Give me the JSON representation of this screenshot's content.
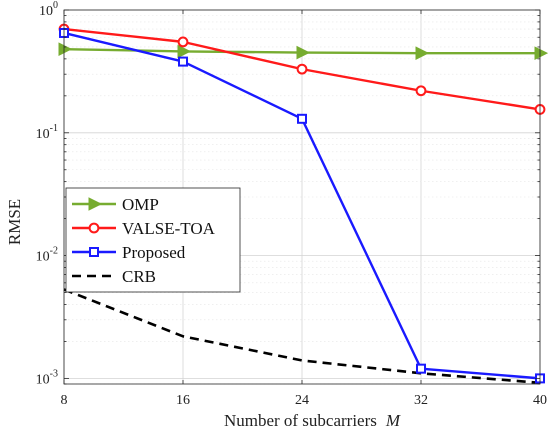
{
  "chart_data": {
    "type": "line",
    "xlabel": "Number of subcarriers",
    "xlabel_var": "M",
    "ylabel": "RMSE",
    "x": [
      8,
      16,
      24,
      32,
      40
    ],
    "xlim": [
      8,
      40
    ],
    "ylim": [
      0.0009,
      1
    ],
    "yscale": "log",
    "grid": true,
    "legend_position": "lower-left",
    "x_ticks": [
      "8",
      "16",
      "24",
      "32",
      "40"
    ],
    "y_ticks": [
      {
        "value": 1,
        "base": "10",
        "exp": "0"
      },
      {
        "value": 0.1,
        "base": "10",
        "exp": "-1"
      },
      {
        "value": 0.01,
        "base": "10",
        "exp": "-2"
      },
      {
        "value": 0.001,
        "base": "10",
        "exp": "-3"
      }
    ],
    "series": [
      {
        "name": "OMP",
        "color": "#77ac30",
        "marker": "triangle-right",
        "line": "solid",
        "values": [
          0.48,
          0.46,
          0.45,
          0.445,
          0.445
        ]
      },
      {
        "name": "VALSE-TOA",
        "color": "#ff1a1a",
        "marker": "circle",
        "line": "solid",
        "values": [
          0.7,
          0.55,
          0.33,
          0.22,
          0.155
        ]
      },
      {
        "name": "Proposed",
        "color": "#1a1aff",
        "marker": "square",
        "line": "solid",
        "values": [
          0.65,
          0.38,
          0.13,
          0.0012,
          0.001
        ]
      },
      {
        "name": "CRB",
        "color": "#000000",
        "marker": "none",
        "line": "dashed",
        "values": [
          0.0053,
          0.0022,
          0.0014,
          0.0011,
          0.00092
        ]
      }
    ]
  }
}
